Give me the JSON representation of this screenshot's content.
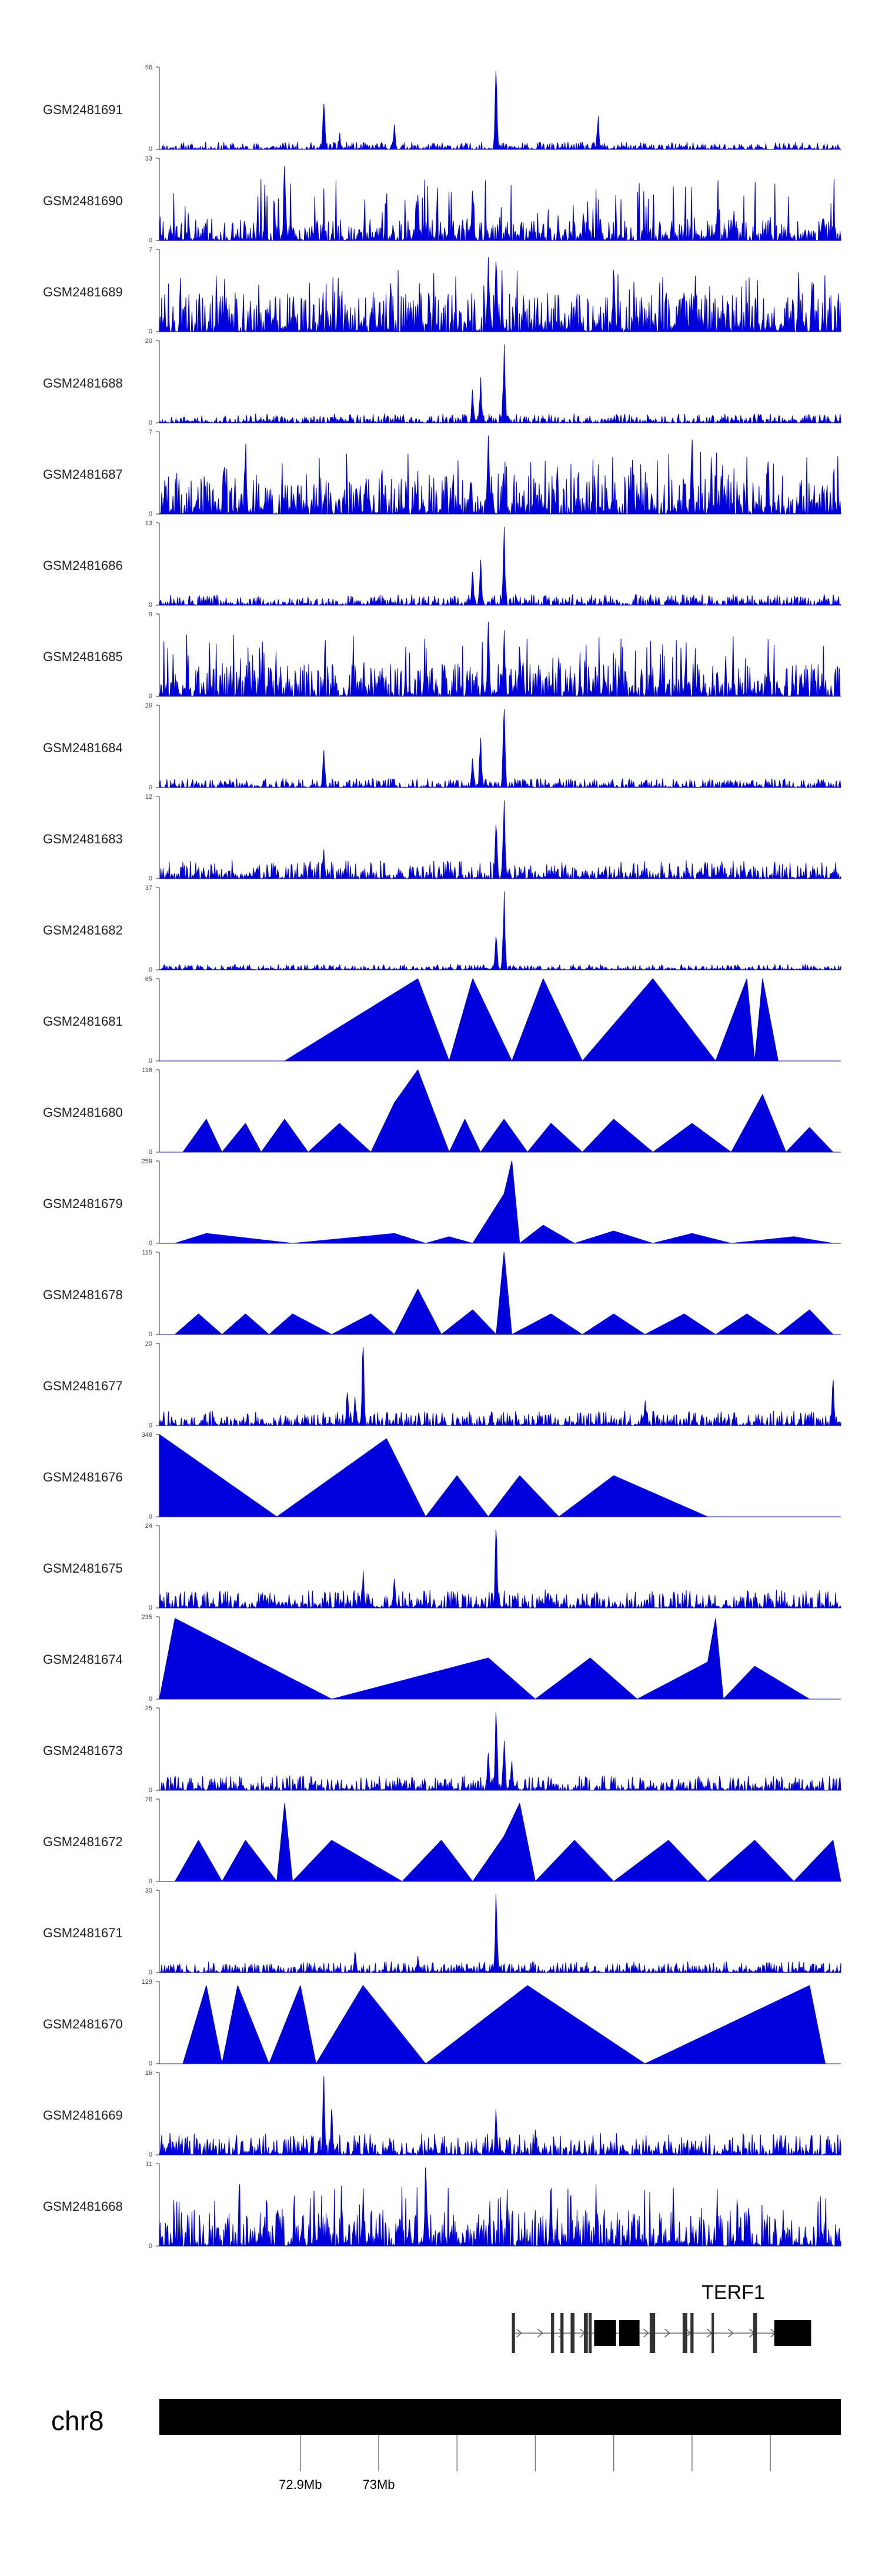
{
  "chart_data": {
    "type": "area",
    "title": "",
    "chromosome": "chr8",
    "genome_range_mb": [
      72.72,
      73.59
    ],
    "color": "#0000dd",
    "xlabel": "",
    "ylabel": "",
    "axis_ticks_mb": [
      72.9,
      73.0,
      73.1,
      73.2,
      73.3,
      73.4,
      73.5
    ],
    "axis_labels": [
      {
        "position_mb": 72.9,
        "label": "72.9Mb"
      },
      {
        "position_mb": 73.0,
        "label": "73Mb"
      }
    ],
    "tracks": [
      {
        "name": "GSM2481691",
        "ymax": 56,
        "ymin": 0,
        "profile": "noise",
        "noise": 0.04,
        "seed": 11,
        "peaks": [
          [
            73.15,
            0.95
          ],
          [
            73.28,
            0.4
          ],
          [
            72.93,
            0.55
          ],
          [
            73.02,
            0.3
          ],
          [
            73.02,
            0.15
          ],
          [
            72.95,
            0.2
          ]
        ]
      },
      {
        "name": "GSM2481690",
        "ymax": 33,
        "ymin": 0,
        "profile": "dense",
        "noise": 0.12,
        "seed": 12,
        "peaks": [
          [
            72.88,
            0.9
          ],
          [
            73.05,
            0.55
          ],
          [
            73.12,
            0.6
          ]
        ]
      },
      {
        "name": "GSM2481689",
        "ymax": 7,
        "ymin": 0,
        "profile": "dense",
        "noise": 0.22,
        "seed": 13,
        "peaks": [
          [
            73.14,
            0.9
          ],
          [
            73.15,
            0.85
          ],
          [
            73.3,
            0.75
          ]
        ]
      },
      {
        "name": "GSM2481688",
        "ymax": 20,
        "ymin": 0,
        "profile": "noise",
        "noise": 0.05,
        "seed": 14,
        "peaks": [
          [
            73.16,
            0.95
          ],
          [
            73.13,
            0.55
          ],
          [
            73.12,
            0.4
          ]
        ]
      },
      {
        "name": "GSM2481687",
        "ymax": 7,
        "ymin": 0,
        "profile": "dense",
        "noise": 0.22,
        "seed": 15,
        "peaks": [
          [
            73.14,
            0.95
          ],
          [
            72.83,
            0.85
          ],
          [
            73.4,
            0.9
          ]
        ]
      },
      {
        "name": "GSM2481686",
        "ymax": 13,
        "ymin": 0,
        "profile": "noise",
        "noise": 0.06,
        "seed": 16,
        "peaks": [
          [
            73.16,
            0.95
          ],
          [
            73.13,
            0.55
          ],
          [
            73.12,
            0.4
          ]
        ]
      },
      {
        "name": "GSM2481685",
        "ymax": 9,
        "ymin": 0,
        "profile": "dense",
        "noise": 0.18,
        "seed": 17,
        "peaks": [
          [
            73.14,
            0.9
          ],
          [
            73.16,
            0.8
          ],
          [
            73.18,
            0.6
          ]
        ]
      },
      {
        "name": "GSM2481684",
        "ymax": 26,
        "ymin": 0,
        "profile": "noise",
        "noise": 0.05,
        "seed": 18,
        "peaks": [
          [
            73.16,
            0.95
          ],
          [
            73.13,
            0.6
          ],
          [
            72.93,
            0.45
          ],
          [
            73.12,
            0.35
          ]
        ]
      },
      {
        "name": "GSM2481683",
        "ymax": 12,
        "ymin": 0,
        "profile": "noise",
        "noise": 0.1,
        "seed": 19,
        "peaks": [
          [
            73.16,
            0.95
          ],
          [
            73.15,
            0.65
          ],
          [
            72.93,
            0.35
          ]
        ]
      },
      {
        "name": "GSM2481682",
        "ymax": 37,
        "ymin": 0,
        "profile": "noise",
        "noise": 0.03,
        "seed": 20,
        "peaks": [
          [
            73.16,
            0.95
          ],
          [
            73.15,
            0.4
          ]
        ]
      },
      {
        "name": "GSM2481681",
        "ymax": 65,
        "ymin": 0,
        "profile": "sparse",
        "points": [
          [
            72.88,
            0
          ],
          [
            73.05,
            1.0
          ],
          [
            73.09,
            0
          ],
          [
            73.12,
            1.0
          ],
          [
            73.17,
            0
          ],
          [
            73.21,
            1.0
          ],
          [
            73.26,
            0
          ],
          [
            73.35,
            1.0
          ],
          [
            73.43,
            0
          ],
          [
            73.47,
            1.0
          ],
          [
            73.48,
            0
          ],
          [
            73.49,
            1.0
          ],
          [
            73.51,
            0
          ]
        ]
      },
      {
        "name": "GSM2481680",
        "ymax": 116,
        "ymin": 0,
        "profile": "sparse",
        "points": [
          [
            72.75,
            0
          ],
          [
            72.78,
            0.4
          ],
          [
            72.8,
            0
          ],
          [
            72.83,
            0.35
          ],
          [
            72.85,
            0
          ],
          [
            72.88,
            0.4
          ],
          [
            72.91,
            0
          ],
          [
            72.95,
            0.35
          ],
          [
            72.99,
            0
          ],
          [
            73.02,
            0.6
          ],
          [
            73.05,
            1.0
          ],
          [
            73.09,
            0
          ],
          [
            73.11,
            0.4
          ],
          [
            73.13,
            0
          ],
          [
            73.16,
            0.4
          ],
          [
            73.19,
            0
          ],
          [
            73.22,
            0.35
          ],
          [
            73.26,
            0
          ],
          [
            73.3,
            0.4
          ],
          [
            73.35,
            0
          ],
          [
            73.4,
            0.35
          ],
          [
            73.45,
            0
          ],
          [
            73.49,
            0.7
          ],
          [
            73.52,
            0
          ],
          [
            73.55,
            0.3
          ],
          [
            73.58,
            0
          ]
        ]
      },
      {
        "name": "GSM2481679",
        "ymax": 259,
        "ymin": 0,
        "profile": "sparse",
        "points": [
          [
            72.74,
            0
          ],
          [
            72.78,
            0.12
          ],
          [
            72.89,
            0
          ],
          [
            73.02,
            0.12
          ],
          [
            73.06,
            0
          ],
          [
            73.09,
            0.08
          ],
          [
            73.12,
            0
          ],
          [
            73.16,
            0.6
          ],
          [
            73.17,
            1.0
          ],
          [
            73.18,
            0
          ],
          [
            73.21,
            0.22
          ],
          [
            73.25,
            0
          ],
          [
            73.3,
            0.15
          ],
          [
            73.35,
            0
          ],
          [
            73.4,
            0.12
          ],
          [
            73.45,
            0
          ],
          [
            73.53,
            0.08
          ],
          [
            73.58,
            0
          ]
        ]
      },
      {
        "name": "GSM2481678",
        "ymax": 115,
        "ymin": 0,
        "profile": "sparse",
        "points": [
          [
            72.74,
            0
          ],
          [
            72.77,
            0.25
          ],
          [
            72.8,
            0
          ],
          [
            72.83,
            0.25
          ],
          [
            72.86,
            0
          ],
          [
            72.89,
            0.25
          ],
          [
            72.94,
            0
          ],
          [
            72.99,
            0.25
          ],
          [
            73.02,
            0
          ],
          [
            73.05,
            0.55
          ],
          [
            73.08,
            0
          ],
          [
            73.12,
            0.3
          ],
          [
            73.15,
            0
          ],
          [
            73.16,
            1.0
          ],
          [
            73.17,
            0
          ],
          [
            73.22,
            0.25
          ],
          [
            73.26,
            0
          ],
          [
            73.3,
            0.25
          ],
          [
            73.34,
            0
          ],
          [
            73.39,
            0.25
          ],
          [
            73.43,
            0
          ],
          [
            73.47,
            0.25
          ],
          [
            73.51,
            0
          ],
          [
            73.55,
            0.3
          ],
          [
            73.58,
            0
          ]
        ]
      },
      {
        "name": "GSM2481677",
        "ymax": 20,
        "ymin": 0,
        "profile": "noise",
        "noise": 0.08,
        "seed": 27,
        "peaks": [
          [
            72.98,
            0.95
          ],
          [
            72.96,
            0.4
          ],
          [
            72.97,
            0.35
          ],
          [
            73.58,
            0.55
          ],
          [
            73.34,
            0.3
          ]
        ]
      },
      {
        "name": "GSM2481676",
        "ymax": 348,
        "ymin": 0,
        "profile": "sparse",
        "points": [
          [
            72.72,
            0
          ],
          [
            72.72,
            1.0
          ],
          [
            72.87,
            0
          ],
          [
            73.01,
            0.95
          ],
          [
            73.06,
            0
          ],
          [
            73.1,
            0.5
          ],
          [
            73.14,
            0
          ],
          [
            73.18,
            0.5
          ],
          [
            73.23,
            0
          ],
          [
            73.3,
            0.5
          ],
          [
            73.42,
            0
          ]
        ]
      },
      {
        "name": "GSM2481675",
        "ymax": 24,
        "ymin": 0,
        "profile": "noise",
        "noise": 0.1,
        "seed": 29,
        "peaks": [
          [
            73.15,
            0.95
          ],
          [
            72.98,
            0.45
          ],
          [
            73.02,
            0.35
          ]
        ]
      },
      {
        "name": "GSM2481674",
        "ymax": 235,
        "ymin": 0,
        "profile": "sparse",
        "points": [
          [
            72.72,
            0
          ],
          [
            72.74,
            0.98
          ],
          [
            72.94,
            0
          ],
          [
            73.14,
            0.5
          ],
          [
            73.2,
            0
          ],
          [
            73.27,
            0.5
          ],
          [
            73.33,
            0
          ],
          [
            73.42,
            0.45
          ],
          [
            73.43,
            0.98
          ],
          [
            73.44,
            0
          ],
          [
            73.48,
            0.4
          ],
          [
            73.55,
            0
          ]
        ]
      },
      {
        "name": "GSM2481673",
        "ymax": 25,
        "ymin": 0,
        "profile": "noise",
        "noise": 0.08,
        "seed": 31,
        "peaks": [
          [
            73.15,
            0.95
          ],
          [
            73.16,
            0.6
          ],
          [
            73.14,
            0.45
          ],
          [
            73.17,
            0.35
          ]
        ]
      },
      {
        "name": "GSM2481672",
        "ymax": 76,
        "ymin": 0,
        "profile": "sparse",
        "points": [
          [
            72.74,
            0
          ],
          [
            72.77,
            0.5
          ],
          [
            72.8,
            0
          ],
          [
            72.83,
            0.5
          ],
          [
            72.87,
            0
          ],
          [
            72.88,
            0.95
          ],
          [
            72.89,
            0
          ],
          [
            72.94,
            0.5
          ],
          [
            73.03,
            0
          ],
          [
            73.08,
            0.5
          ],
          [
            73.12,
            0
          ],
          [
            73.16,
            0.55
          ],
          [
            73.18,
            0.95
          ],
          [
            73.2,
            0
          ],
          [
            73.25,
            0.5
          ],
          [
            73.3,
            0
          ],
          [
            73.37,
            0.5
          ],
          [
            73.42,
            0
          ],
          [
            73.48,
            0.5
          ],
          [
            73.53,
            0
          ],
          [
            73.58,
            0.5
          ],
          [
            73.59,
            0
          ]
        ]
      },
      {
        "name": "GSM2481671",
        "ymax": 30,
        "ymin": 0,
        "profile": "noise",
        "noise": 0.06,
        "seed": 33,
        "peaks": [
          [
            73.15,
            0.95
          ],
          [
            72.97,
            0.25
          ],
          [
            73.05,
            0.2
          ]
        ]
      },
      {
        "name": "GSM2481670",
        "ymax": 129,
        "ymin": 0,
        "profile": "sparse",
        "points": [
          [
            72.75,
            0
          ],
          [
            72.78,
            0.95
          ],
          [
            72.8,
            0
          ],
          [
            72.82,
            0.95
          ],
          [
            72.86,
            0
          ],
          [
            72.9,
            0.95
          ],
          [
            72.92,
            0
          ],
          [
            72.98,
            0.95
          ],
          [
            73.06,
            0
          ],
          [
            73.19,
            0.95
          ],
          [
            73.34,
            0
          ],
          [
            73.55,
            0.95
          ],
          [
            73.57,
            0
          ]
        ]
      },
      {
        "name": "GSM2481669",
        "ymax": 16,
        "ymin": 0,
        "profile": "noise",
        "noise": 0.12,
        "seed": 35,
        "peaks": [
          [
            72.93,
            0.95
          ],
          [
            72.94,
            0.55
          ],
          [
            73.15,
            0.55
          ],
          [
            73.2,
            0.3
          ]
        ]
      },
      {
        "name": "GSM2481668",
        "ymax": 11,
        "ymin": 0,
        "profile": "dense",
        "noise": 0.2,
        "seed": 36,
        "peaks": [
          [
            73.06,
            0.95
          ],
          [
            72.98,
            0.7
          ],
          [
            73.22,
            0.7
          ]
        ]
      }
    ],
    "gene_track": {
      "gene": "TERF1",
      "strand": "+",
      "start_mb": 73.17,
      "end_mb": 73.55,
      "exons": [
        [
          73.17,
          73.174
        ],
        [
          73.22,
          73.224
        ],
        [
          73.232,
          73.236
        ],
        [
          73.245,
          73.25
        ],
        [
          73.262,
          73.267
        ],
        [
          73.268,
          73.272
        ],
        [
          73.275,
          73.303
        ],
        [
          73.307,
          73.333
        ],
        [
          73.346,
          73.353
        ],
        [
          73.388,
          73.394
        ],
        [
          73.398,
          73.402
        ],
        [
          73.425,
          73.428
        ],
        [
          73.478,
          73.483
        ],
        [
          73.505,
          73.552
        ]
      ]
    }
  }
}
